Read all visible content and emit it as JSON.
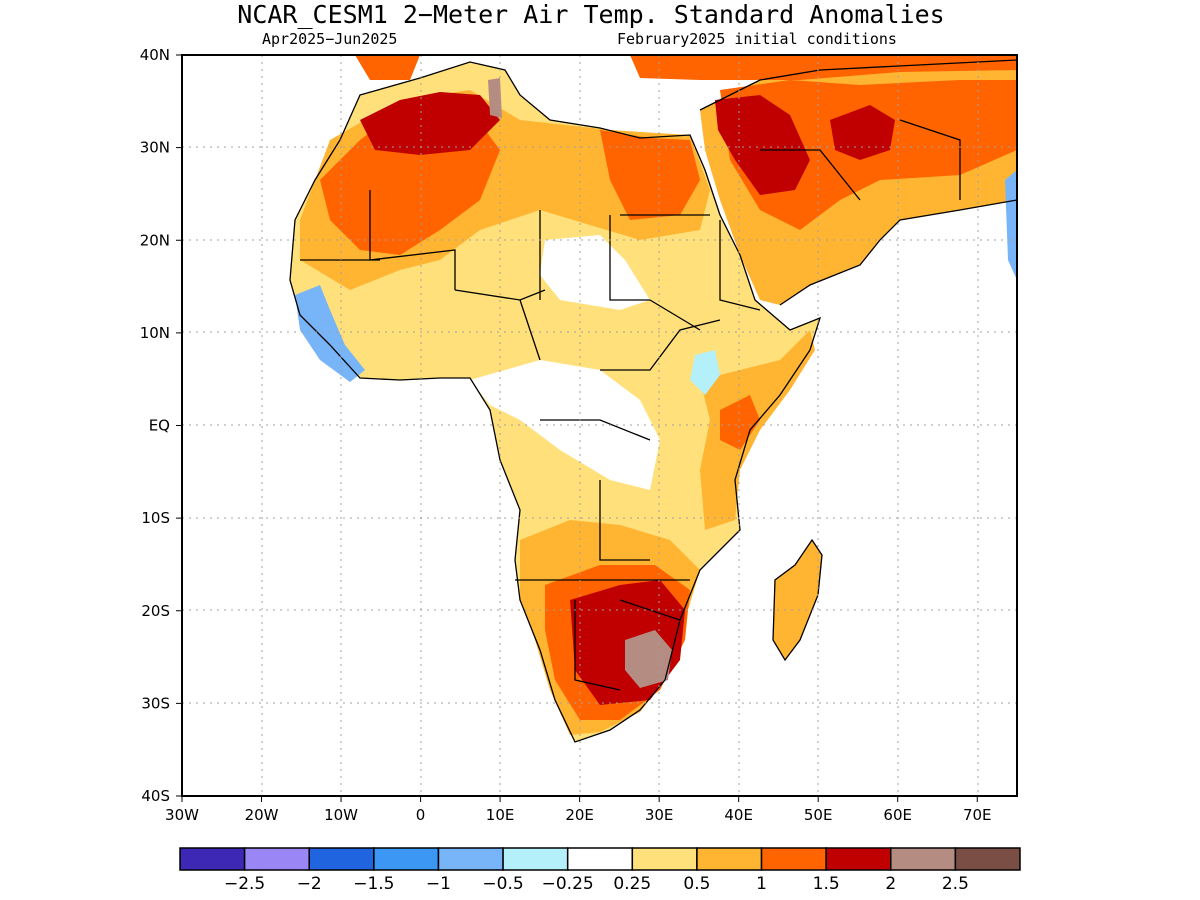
{
  "title": "NCAR_CESM1 2−Meter Air Temp. Standard Anomalies",
  "subtitle_left": "Apr2025−Jun2025",
  "subtitle_right": "February2025 initial conditions",
  "map": {
    "lon_range": [
      -30,
      75
    ],
    "lat_range": [
      -40,
      40
    ],
    "grid": true,
    "lon_ticks": [
      "30W",
      "20W",
      "10W",
      "0",
      "10E",
      "20E",
      "30E",
      "40E",
      "50E",
      "60E",
      "70E"
    ],
    "lat_ticks": [
      "40N",
      "30N",
      "20N",
      "10N",
      "EQ",
      "10S",
      "20S",
      "30S",
      "40S"
    ]
  },
  "colorbar": {
    "colors": [
      "#3c28b4",
      "#9a86f4",
      "#2164e0",
      "#3c96f4",
      "#78b4f8",
      "#b4f0fa",
      "#ffffff",
      "#ffe07a",
      "#ffb432",
      "#ff6400",
      "#c00000",
      "#b48c82",
      "#7a4e44"
    ],
    "labels": [
      "−2.5",
      "−2",
      "−1.5",
      "−1",
      "−0.5",
      "−0.25",
      "0.25",
      "0.5",
      "1",
      "1.5",
      "2",
      "2.5"
    ]
  }
}
